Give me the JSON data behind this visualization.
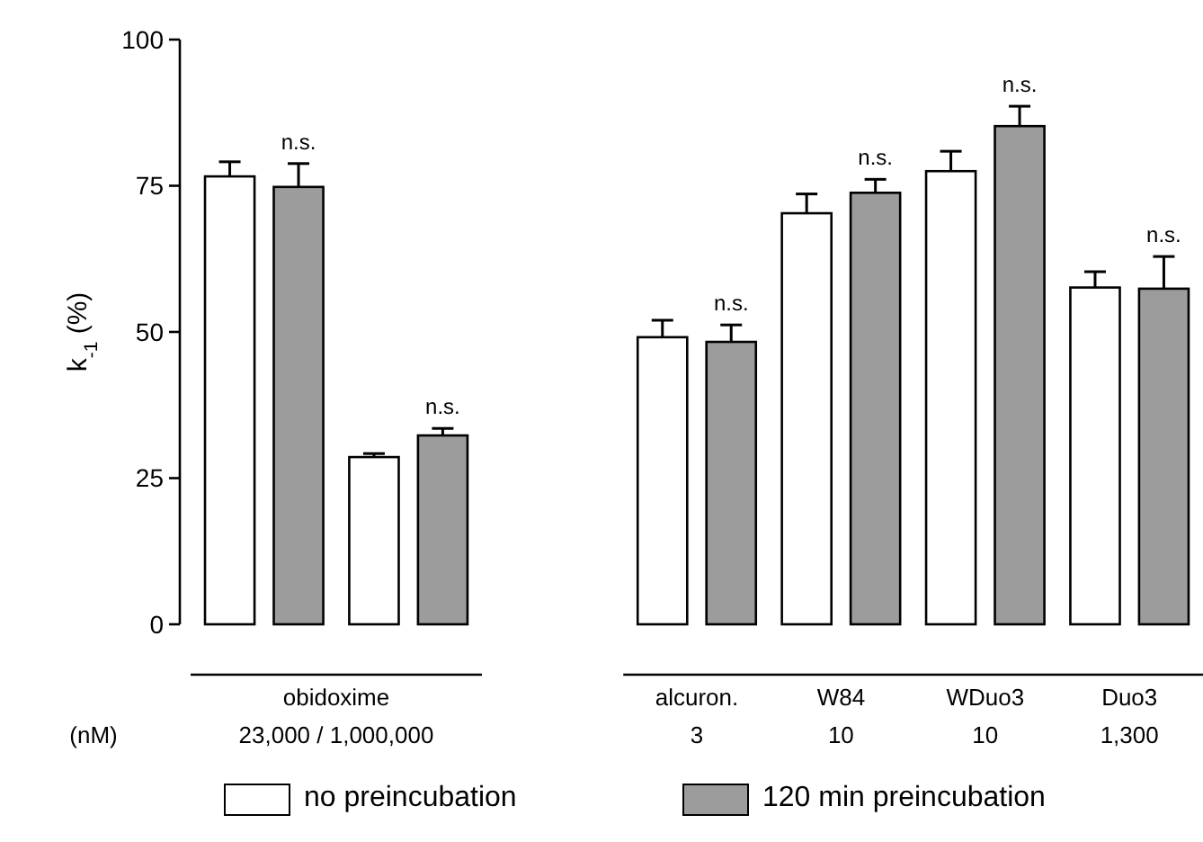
{
  "chart_data": {
    "type": "bar",
    "ylabel": "k$_{-1}$ (%)",
    "categories": [
      null,
      null,
      null,
      "alcuron.\n3",
      "W84\n10",
      "WDuo3\n10",
      "Duo3\n1,300"
    ],
    "series": [
      {
        "name": "no preincubation",
        "color": "#ffffff",
        "values": [
          76.6,
          28.6,
          null,
          49.1,
          70.3,
          77.5,
          57.6
        ],
        "errors": [
          2.5,
          0.6,
          null,
          2.9,
          3.3,
          3.4,
          2.7
        ]
      },
      {
        "name": "120 min preincubation",
        "color": "#9c9c9c",
        "values": [
          74.8,
          32.3,
          null,
          48.3,
          73.8,
          85.2,
          57.4
        ],
        "errors": [
          4,
          1.2,
          null,
          2.9,
          2.3,
          3.4,
          5.5
        ],
        "value_labels": [
          "n.s.",
          "n.s.",
          null,
          "n.s.",
          "n.s.",
          "n.s.",
          "n.s."
        ]
      }
    ],
    "ylim": [
      0,
      100
    ],
    "yticks": [
      0,
      25,
      50,
      75,
      100
    ],
    "grid": false,
    "legend": "bottom",
    "annotations": [
      "obidoxime",
      "23,000 / 1,000,000",
      "(nM)"
    ]
  }
}
